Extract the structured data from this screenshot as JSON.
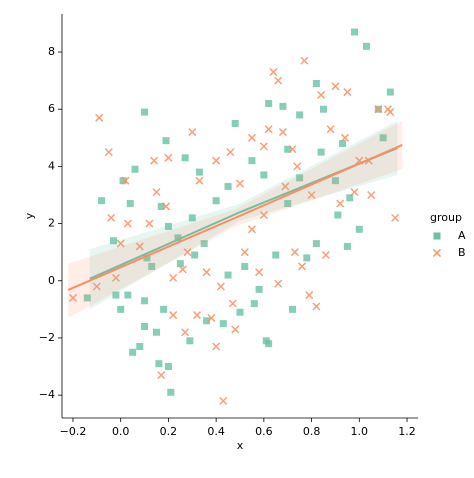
{
  "chart_data": {
    "type": "scatter",
    "xlabel": "x",
    "ylabel": "y",
    "xlim": [
      -0.246,
      1.246
    ],
    "ylim": [
      -4.8,
      9.33
    ],
    "xticks": [
      {
        "value": -0.2,
        "label": "−0.2"
      },
      {
        "value": 0,
        "label": "0.0"
      },
      {
        "value": 0.2,
        "label": "0.2"
      },
      {
        "value": 0.4,
        "label": "0.4"
      },
      {
        "value": 0.6,
        "label": "0.6"
      },
      {
        "value": 0.8,
        "label": "0.8"
      },
      {
        "value": 1.0,
        "label": "1.0"
      },
      {
        "value": 1.2,
        "label": "1.2"
      }
    ],
    "yticks": [
      {
        "value": -4,
        "label": "−4"
      },
      {
        "value": -2,
        "label": "−2"
      },
      0,
      2,
      4,
      6,
      8
    ],
    "legend_title": "group",
    "legend": "right",
    "series": [
      {
        "name": "A",
        "color": "#66c2a5",
        "marker": "square",
        "x": [
          0.98,
          1.03,
          0.82,
          1.13,
          0.62,
          0.68,
          0.1,
          0.48,
          0.75,
          0.19,
          0.06,
          0.01,
          -0.08,
          0.04,
          0.17,
          0.3,
          0.2,
          0.24,
          0.31,
          0.11,
          0.13,
          -0.02,
          0.03,
          0.1,
          0.18,
          0.1,
          0.15,
          0.08,
          0.05,
          0.16,
          0.2,
          0.21,
          0.29,
          0.36,
          0.43,
          0.5,
          0.56,
          0.61,
          0.62,
          0.72,
          0.78,
          0.82,
          0.95,
          1.0,
          0.91,
          0.96,
          0.9,
          0.84,
          0.7,
          0.6,
          0.55,
          0.45,
          0.4,
          0.35,
          0.45,
          0.52,
          0.65,
          0.58,
          0.25,
          0.33,
          1.08,
          1.1,
          0.93,
          -0.14,
          -0.03,
          0.0,
          0.27,
          0.7,
          0.75,
          0.85
        ],
        "y": [
          8.7,
          8.2,
          6.9,
          6.6,
          6.2,
          6.1,
          5.9,
          5.5,
          5.8,
          4.9,
          3.9,
          3.5,
          2.8,
          2.7,
          2.6,
          2.2,
          1.9,
          1.5,
          0.9,
          0.8,
          0.5,
          -0.5,
          -0.5,
          -0.7,
          -1.0,
          -1.6,
          -1.8,
          -2.3,
          -2.5,
          -2.9,
          -3.0,
          -3.9,
          -2.1,
          -1.4,
          -1.5,
          -1.1,
          -0.8,
          -2.1,
          -2.2,
          -1.0,
          0.8,
          1.3,
          1.2,
          1.8,
          2.3,
          2.9,
          3.5,
          4.5,
          4.6,
          3.7,
          4.2,
          3.3,
          2.8,
          1.3,
          0.2,
          0.5,
          0.9,
          -0.3,
          0.6,
          3.8,
          6.0,
          5.0,
          4.8,
          -0.6,
          1.4,
          -1.0,
          4.3,
          2.7,
          3.6,
          6.0
        ],
        "fit": {
          "x": [
            -0.13,
            0.5,
            1.16
          ],
          "y": [
            0.07,
            2.4,
            4.64
          ],
          "ci_lower": [
            -1.0,
            2.1,
            3.7
          ],
          "ci_upper": [
            1.1,
            2.7,
            5.6
          ]
        }
      },
      {
        "name": "B",
        "color": "#fc8d62",
        "marker": "x",
        "x": [
          -0.2,
          -0.1,
          -0.09,
          -0.05,
          0.02,
          0.03,
          0.0,
          -0.04,
          0.14,
          0.15,
          0.19,
          0.2,
          0.22,
          0.26,
          0.17,
          0.22,
          0.27,
          0.32,
          0.38,
          0.43,
          0.4,
          0.47,
          0.42,
          0.36,
          0.33,
          0.4,
          0.5,
          0.52,
          0.58,
          0.6,
          0.66,
          0.73,
          0.76,
          0.79,
          0.82,
          0.86,
          0.92,
          0.98,
          1.0,
          1.04,
          1.05,
          1.15,
          1.13,
          1.12,
          0.9,
          0.84,
          0.77,
          0.64,
          0.66,
          0.6,
          0.55,
          0.68,
          0.74,
          0.69,
          0.8,
          0.88,
          0.95,
          0.12,
          0.08,
          -0.02,
          0.3,
          0.46,
          0.55,
          0.62,
          0.48,
          0.28,
          1.08,
          0.94,
          0.72
        ],
        "y": [
          -0.6,
          -0.2,
          5.7,
          4.5,
          3.5,
          2.0,
          1.3,
          2.2,
          4.2,
          3.1,
          2.6,
          4.3,
          0.1,
          0.4,
          -3.3,
          -1.2,
          -1.8,
          -1.2,
          -1.3,
          -4.2,
          -2.3,
          -0.8,
          -0.2,
          0.3,
          3.5,
          4.2,
          3.4,
          1.0,
          0.3,
          2.3,
          -0.1,
          1.0,
          0.5,
          -0.5,
          -0.9,
          0.9,
          2.7,
          3.1,
          4.2,
          4.2,
          3.0,
          2.2,
          5.9,
          6.0,
          6.8,
          6.5,
          7.7,
          7.3,
          7.0,
          4.7,
          5.0,
          5.2,
          4.0,
          3.3,
          3.0,
          5.3,
          6.6,
          2.0,
          1.2,
          0.1,
          5.2,
          4.5,
          1.8,
          5.3,
          -1.7,
          1.0,
          6.0,
          5.0,
          4.6
        ],
        "fit": {
          "x": [
            -0.22,
            0.48,
            1.18
          ],
          "y": [
            -0.32,
            2.2,
            4.75
          ],
          "ci_lower": [
            -1.3,
            1.9,
            3.9
          ],
          "ci_upper": [
            0.6,
            2.5,
            5.6
          ]
        }
      }
    ]
  }
}
